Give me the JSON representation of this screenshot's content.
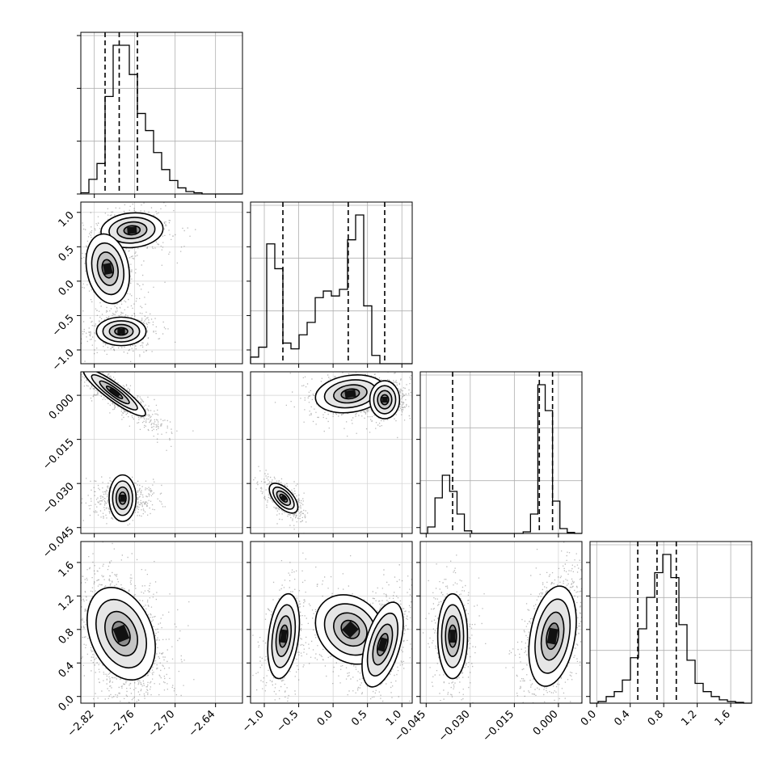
{
  "chart_data": {
    "type": "corner",
    "n_params": 4,
    "params": [
      {
        "range": [
          -2.84,
          -2.6
        ],
        "ticks": [
          -2.82,
          -2.76,
          -2.7,
          -2.64
        ],
        "tick_labels": [
          "−2.82",
          "−2.76",
          "−2.70",
          "−2.64"
        ]
      },
      {
        "range": [
          -1.2,
          1.15
        ],
        "ticks": [
          -1.0,
          -0.5,
          0.0,
          0.5,
          1.0
        ],
        "tick_labels": [
          "−1.0",
          "−0.5",
          "0.0",
          "0.5",
          "1.0"
        ]
      },
      {
        "range": [
          -0.047,
          0.008
        ],
        "ticks": [
          -0.045,
          -0.03,
          -0.015,
          0.0
        ],
        "tick_labels": [
          "−0.045",
          "−0.030",
          "−0.015",
          "0.000"
        ]
      },
      {
        "range": [
          -0.08,
          1.85
        ],
        "ticks": [
          0.0,
          0.4,
          0.8,
          1.2,
          1.6
        ],
        "tick_labels": [
          "0.0",
          "0.4",
          "0.8",
          "1.2",
          "1.6"
        ]
      }
    ],
    "quantiles": [
      [
        -2.804,
        -2.783,
        -2.756
      ],
      [
        -0.73,
        0.22,
        0.75
      ],
      [
        -0.036,
        -0.0065,
        -0.002
      ],
      [
        0.49,
        0.72,
        0.95
      ]
    ],
    "histograms": [
      {
        "counts": [
          1,
          12,
          25,
          80,
          122,
          122,
          98,
          66,
          52,
          34,
          20,
          11,
          5,
          2,
          1,
          0,
          0,
          0,
          0,
          0
        ]
      },
      {
        "counts": [
          8,
          20,
          145,
          115,
          25,
          18,
          35,
          50,
          80,
          88,
          82,
          90,
          150,
          180,
          70,
          10,
          0,
          0,
          0,
          0
        ]
      },
      {
        "counts": [
          0,
          20,
          110,
          180,
          130,
          60,
          8,
          0,
          0,
          0,
          0,
          0,
          0,
          0,
          5,
          60,
          460,
          380,
          100,
          15,
          3,
          0
        ]
      },
      {
        "counts": [
          0,
          2,
          8,
          14,
          28,
          55,
          90,
          128,
          158,
          180,
          152,
          95,
          52,
          24,
          14,
          8,
          4,
          2,
          1,
          0
        ]
      }
    ],
    "joint_2d": {
      "1_0": [
        {
          "mean": [
            -2.764,
            0.74
          ],
          "sd": [
            0.02,
            0.11
          ],
          "rho": 0.1,
          "w": 0.35
        },
        {
          "mean": [
            -2.8,
            0.18
          ],
          "sd": [
            0.014,
            0.22
          ],
          "rho": -0.2,
          "w": 0.3
        },
        {
          "mean": [
            -2.78,
            -0.73
          ],
          "sd": [
            0.016,
            0.09
          ],
          "rho": 0.0,
          "w": 0.35
        }
      ],
      "2_0": [
        {
          "mean": [
            -2.79,
            0.001
          ],
          "sd": [
            0.02,
            0.0035
          ],
          "rho": -0.9,
          "w": 0.65
        },
        {
          "mean": [
            -2.778,
            -0.035
          ],
          "sd": [
            0.015,
            0.002
          ],
          "rho": 0.0,
          "w": 0.35
        }
      ],
      "3_0": [
        {
          "mean": [
            -2.78,
            0.75
          ],
          "sd": [
            0.022,
            0.24
          ],
          "rho": -0.3,
          "w": 1.0
        }
      ],
      "2_1": [
        {
          "mean": [
            0.25,
            0.0005
          ],
          "sd": [
            0.22,
            0.0028
          ],
          "rho": 0.2,
          "w": 0.35
        },
        {
          "mean": [
            0.75,
            -0.0015
          ],
          "sd": [
            0.12,
            0.0022
          ],
          "rho": 0.0,
          "w": 0.3
        },
        {
          "mean": [
            -0.72,
            -0.035
          ],
          "sd": [
            0.09,
            0.0022
          ],
          "rho": -0.6,
          "w": 0.35
        }
      ],
      "3_1": [
        {
          "mean": [
            -0.72,
            0.72
          ],
          "sd": [
            0.1,
            0.22
          ],
          "rho": 0.3,
          "w": 0.35
        },
        {
          "mean": [
            0.25,
            0.8
          ],
          "sd": [
            0.22,
            0.18
          ],
          "rho": -0.2,
          "w": 0.3
        },
        {
          "mean": [
            0.72,
            0.62
          ],
          "sd": [
            0.13,
            0.22
          ],
          "rho": 0.5,
          "w": 0.35
        }
      ],
      "3_2": [
        {
          "mean": [
            -0.036,
            0.72
          ],
          "sd": [
            0.0022,
            0.22
          ],
          "rho": 0.0,
          "w": 0.35
        },
        {
          "mean": [
            -0.002,
            0.72
          ],
          "sd": [
            0.0035,
            0.26
          ],
          "rho": 0.3,
          "w": 0.65
        }
      ]
    },
    "grid": true,
    "quantile_style": "dashed"
  }
}
